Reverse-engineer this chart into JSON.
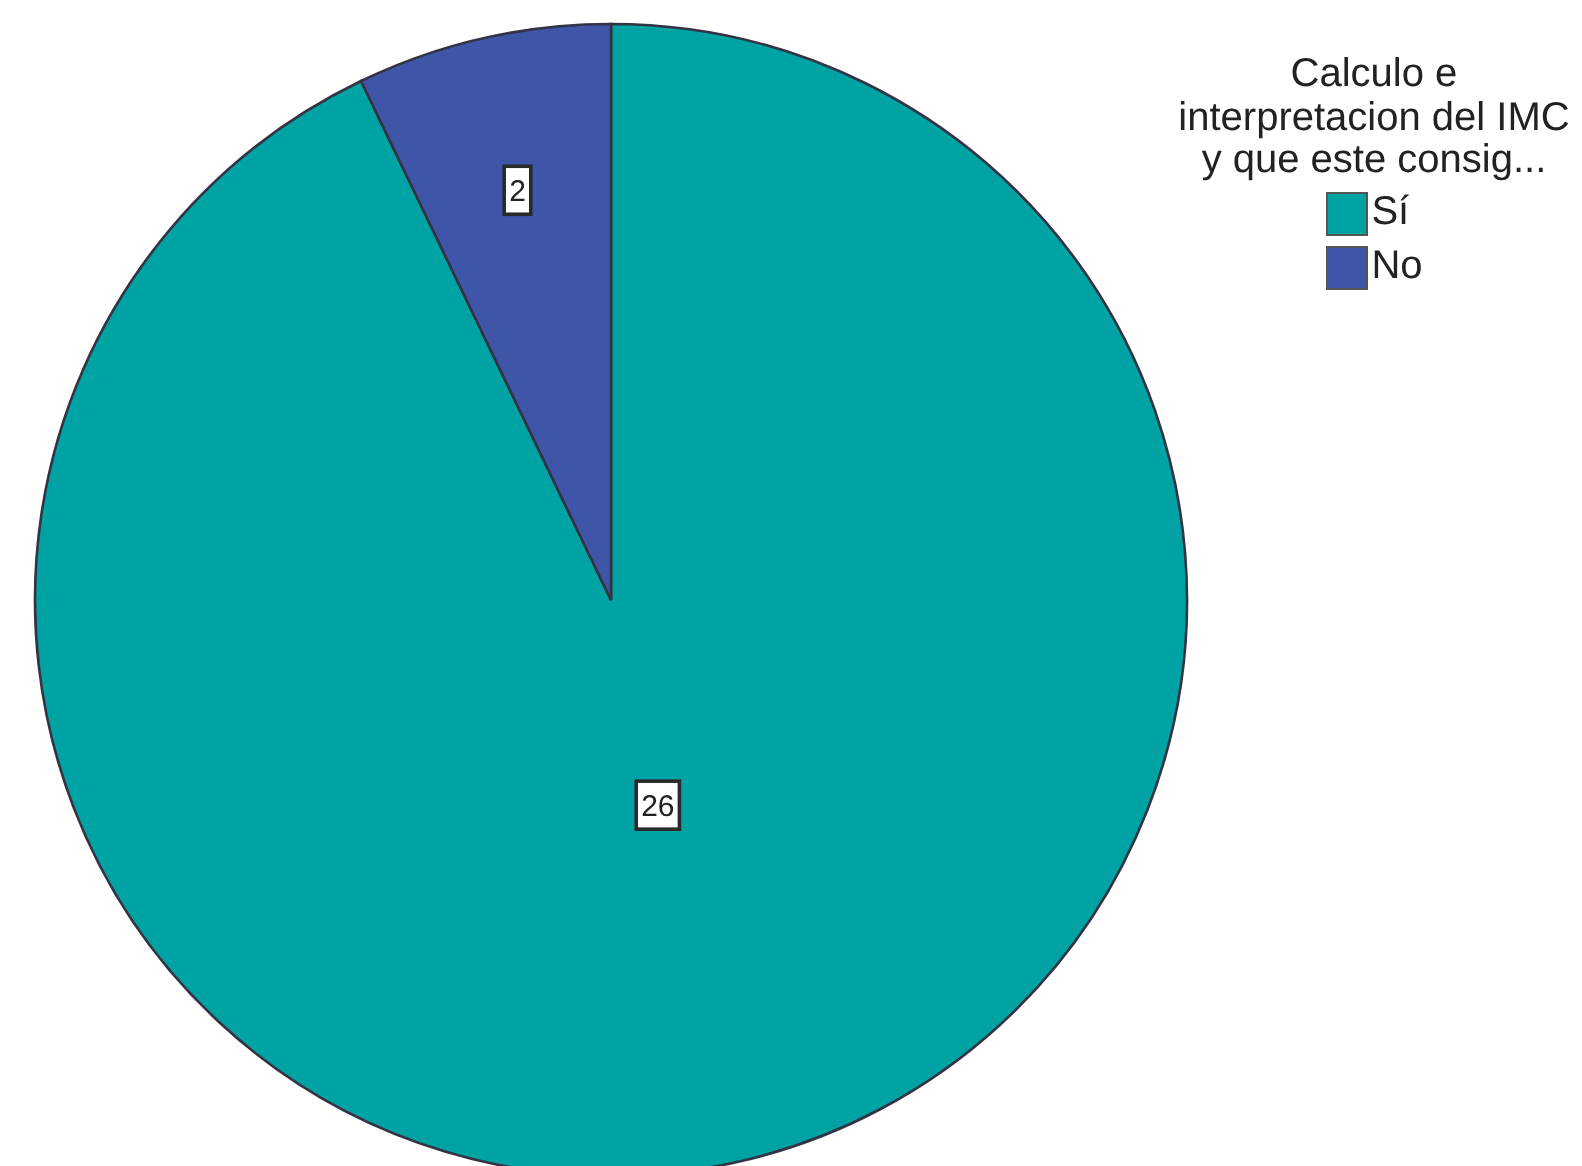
{
  "chart_data": {
    "type": "pie",
    "legend_title": "Calculo e interpretacion del IMC y que este consig...",
    "categories": [
      "Sí",
      "No"
    ],
    "values": [
      26,
      2
    ],
    "colors": [
      "#00a3a3",
      "#3f56a8"
    ],
    "data_labels": true,
    "legend": "top right"
  }
}
